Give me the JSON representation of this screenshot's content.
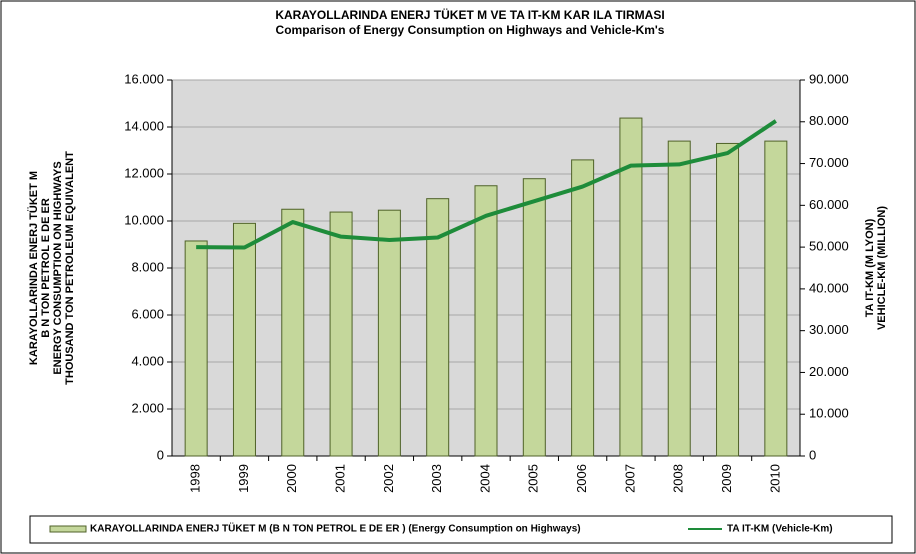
{
  "chart_data": {
    "type": "bar",
    "title": "KARAYOLLARINDA ENERJ  TÜKET M  VE TA  IT-KM KAR  ILA  TIRMASI",
    "subtitle": "Comparison of Energy Consumption on Highways and Vehicle-Km's",
    "ylabel": [
      "KARAYOLLARINDA ENERJ  TÜKET M",
      "B N TON PETROL E  DE  ER",
      "ENERGY CONSUMPTION ON HIGHWAYS",
      "THOUSAND TON PETROLEUM EQUIVALENT"
    ],
    "y2label": [
      "TA  IT-KM (M LYON)",
      "VEHICLE-KM (MILLION)"
    ],
    "categories": [
      "1998",
      "1999",
      "2000",
      "2001",
      "2002",
      "2003",
      "2004",
      "2005",
      "2006",
      "2007",
      "2008",
      "2009",
      "2010"
    ],
    "series": [
      {
        "name": "KARAYOLLARINDA ENERJ  TÜKET M  (B N TON PETROL E  DE  ER ) (Energy Consumption on Highways)",
        "type": "bar",
        "color": "#c4d79b",
        "values": [
          9150,
          9900,
          10500,
          10380,
          10460,
          10950,
          11500,
          11800,
          12600,
          14380,
          13400,
          13300,
          13400
        ]
      },
      {
        "name": "TA  IT-KM (Vehicle-Km)",
        "type": "line",
        "color": "#1e8c3a",
        "axis": "y2",
        "values": [
          50000,
          49900,
          56000,
          52500,
          51700,
          52300,
          57500,
          61000,
          64500,
          69500,
          69800,
          72500,
          80200
        ]
      }
    ],
    "ylim": [
      0,
      16000
    ],
    "yticks": [
      0,
      {
        "value": 2000,
        "label": "2.000"
      },
      {
        "value": 4000,
        "label": "4.000"
      },
      {
        "value": 6000,
        "label": "6.000"
      },
      {
        "value": 8000,
        "label": "8.000"
      },
      {
        "value": 10000,
        "label": "10.000"
      },
      {
        "value": 12000,
        "label": "12.000"
      },
      {
        "value": 14000,
        "label": "14.000"
      },
      {
        "value": 16000,
        "label": "16.000"
      }
    ],
    "y2lim": [
      0,
      90000
    ],
    "y2ticks": [
      0,
      {
        "value": 10000,
        "label": "10.000"
      },
      {
        "value": 20000,
        "label": "20.000"
      },
      {
        "value": 30000,
        "label": "30.000"
      },
      {
        "value": 40000,
        "label": "40.000"
      },
      {
        "value": 50000,
        "label": "50.000"
      },
      {
        "value": 60000,
        "label": "60.000"
      },
      {
        "value": 70000,
        "label": "70.000"
      },
      {
        "value": 80000,
        "label": "80.000"
      },
      {
        "value": 90000,
        "label": "90.000"
      }
    ],
    "grid": true,
    "legend": "bottom"
  }
}
